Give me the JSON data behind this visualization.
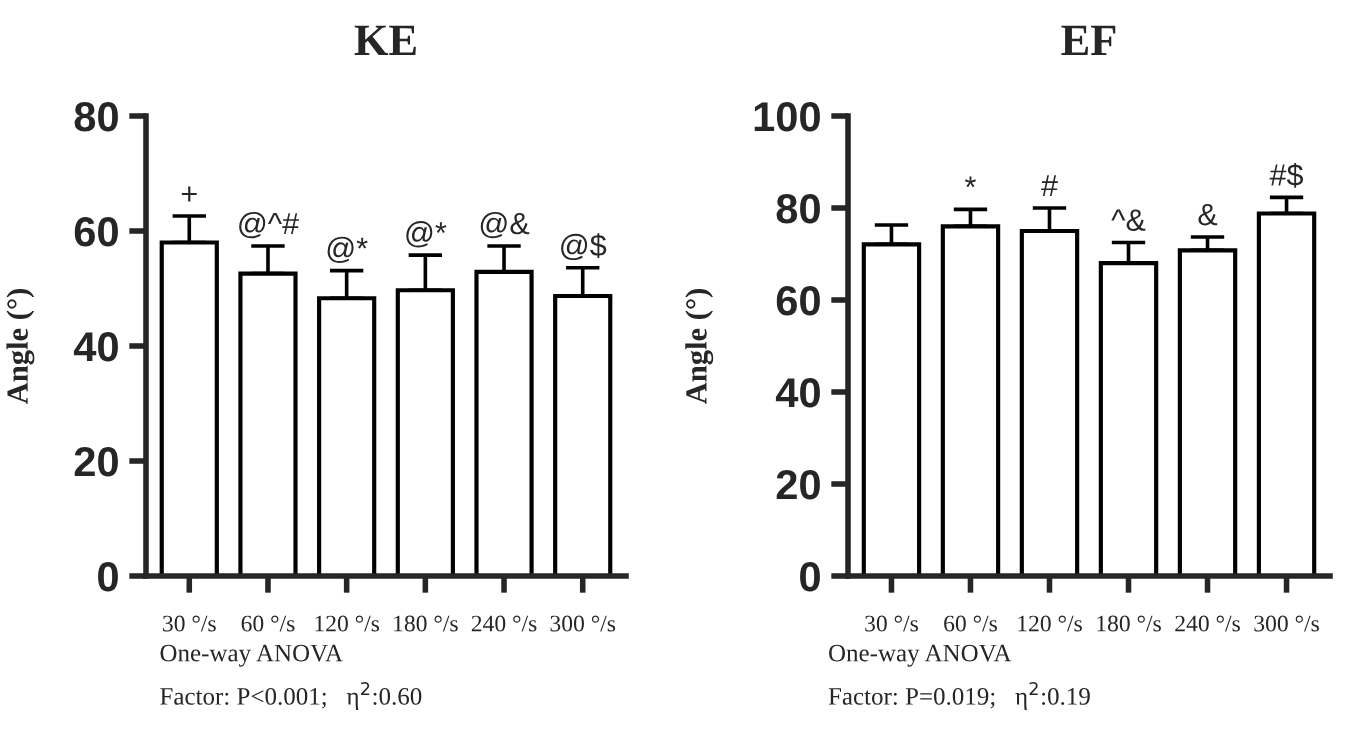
{
  "chart_data": [
    {
      "type": "bar",
      "title": "KE",
      "ylabel": "Angle (°)",
      "categories": [
        "30 °/s",
        "60 °/s",
        "120 °/s",
        "180 °/s",
        "240 °/s",
        "300 °/s"
      ],
      "values": [
        58.0,
        52.6,
        48.3,
        49.7,
        52.9,
        48.7
      ],
      "color": "#ffffff",
      "errors": [
        [
          58.0,
          62.6
        ],
        [
          52.6,
          57.4
        ],
        [
          48.3,
          53.1
        ],
        [
          49.7,
          55.8
        ],
        [
          52.9,
          57.4
        ],
        [
          48.7,
          53.6
        ]
      ],
      "ylim": [
        0,
        80
      ],
      "yticks": [
        0,
        20,
        40,
        60,
        80
      ],
      "grid": false,
      "legend": false,
      "annotations": [
        {
          "text": "+",
          "x": "30 °/s",
          "y": 62.6
        },
        {
          "text": "@^#",
          "x": "60 °/s",
          "y": 57.4
        },
        {
          "text": "@*",
          "x": "120 °/s",
          "y": 53.1
        },
        {
          "text": "@*",
          "x": "180 °/s",
          "y": 55.8
        },
        {
          "text": "@&",
          "x": "240 °/s",
          "y": 57.4
        },
        {
          "text": "@$",
          "x": "300 °/s",
          "y": 53.6
        },
        "One-way ANOVA",
        "Factor: P<0.001;   η$^{2}$:0.60"
      ]
    },
    {
      "type": "bar",
      "title": "EF",
      "ylabel": "Angle (°)",
      "categories": [
        "30 °/s",
        "60 °/s",
        "120 °/s",
        "180 °/s",
        "240 °/s",
        "300 °/s"
      ],
      "values": [
        72.1,
        76.0,
        75.0,
        68.0,
        70.8,
        78.8
      ],
      "color": "#ffffff",
      "errors": [
        [
          72.1,
          76.3
        ],
        [
          76.0,
          79.7
        ],
        [
          75.0,
          80.0
        ],
        [
          68.0,
          72.5
        ],
        [
          70.8,
          73.7
        ],
        [
          78.8,
          82.3
        ]
      ],
      "ylim": [
        0,
        100
      ],
      "yticks": [
        0,
        20,
        40,
        60,
        80,
        100
      ],
      "grid": false,
      "legend": false,
      "annotations": [
        {
          "text": "*",
          "x": "60 °/s",
          "y": 79.7
        },
        {
          "text": "#",
          "x": "120 °/s",
          "y": 80.0
        },
        {
          "text": "^&",
          "x": "180 °/s",
          "y": 72.5
        },
        {
          "text": "&",
          "x": "240 °/s",
          "y": 73.7
        },
        {
          "text": "#$",
          "x": "300 °/s",
          "y": 82.3
        },
        "One-way ANOVA",
        "Factor: P=0.019;   η$^{2}$:0.19"
      ]
    }
  ]
}
